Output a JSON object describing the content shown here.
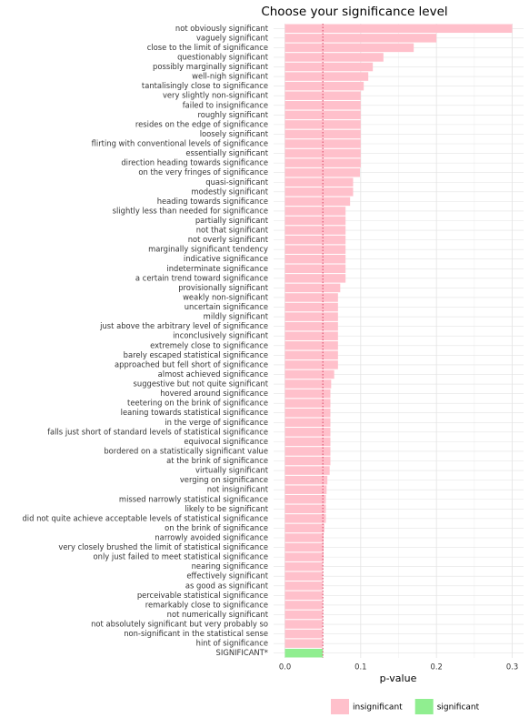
{
  "chart_data": {
    "type": "barh",
    "title": "Choose your significance level",
    "x_label": "p-value",
    "categories": [
      "not obviously significant",
      "vaguely significant",
      "close to the limit of significance",
      "questionably significant",
      "possibly marginally significant",
      "well-nigh significant",
      "tantalisingly close to significance",
      "very slightly non-significant",
      "failed to insignificance",
      "roughly significant",
      "resides on the edge of significance",
      "loosely significant",
      "flirting with conventional levels of significance",
      "essentially significant",
      "direction heading towards significance",
      "on the very fringes of significance",
      "quasi-significant",
      "modestly significant",
      "heading towards significance",
      "slightly less than needed for significance",
      "partially significant",
      "not that significant",
      "not overly significant",
      "marginally significant tendency",
      "indicative significance",
      "indeterminate significance",
      "a certain trend toward significance",
      "provisionally significant",
      "weakly non-significant",
      "uncertain significance",
      "mildly significant",
      "just above the arbitrary level of significance",
      "inconclusively significant",
      "extremely close to significance",
      "barely escaped statistical significance",
      "approached but fell short of significance",
      "almost achieved significance",
      "suggestive but not quite significant",
      "hovered around significance",
      "teetering on the brink of significance",
      "leaning towards statistical significance",
      "in the verge of significance",
      "falls just short of standard levels of statistical significance",
      "equivocal significance",
      "bordered on a statistically significant value",
      "at the brink of significance",
      "virtually significant",
      "verging on significance",
      "not insignificant",
      "missed narrowly statistical significance",
      "likely to be significant",
      "did not quite achieve acceptable levels of statistical significance",
      "on the brink of significance",
      "narrowly avoided significance",
      "very closely brushed the limit of statistical significance",
      "only just failed to meet statistical significance",
      "nearing significance",
      "effectively significant",
      "as good as significant",
      "perceivable statistical significance",
      "remarkably close to significance",
      "not numerically significant",
      "not absolutely significant but very probably so",
      "non-significant in the statistical sense",
      "hint of significance",
      "SIGNIFICANT*"
    ],
    "series": [
      {
        "name": "insignificant",
        "color": "#ffc0cb",
        "values": [
          0.3,
          0.2,
          0.17,
          0.13,
          0.116,
          0.11,
          0.104,
          0.1,
          0.1,
          0.1,
          0.1,
          0.1,
          0.1,
          0.1,
          0.1,
          0.099,
          0.09,
          0.09,
          0.086,
          0.08,
          0.08,
          0.08,
          0.08,
          0.08,
          0.08,
          0.08,
          0.08,
          0.073,
          0.07,
          0.07,
          0.07,
          0.07,
          0.07,
          0.07,
          0.07,
          0.07,
          0.065,
          0.061,
          0.06,
          0.06,
          0.06,
          0.06,
          0.06,
          0.06,
          0.06,
          0.06,
          0.059,
          0.056,
          0.055,
          0.054,
          0.054,
          0.054,
          0.052,
          0.051,
          0.051,
          0.051,
          0.05,
          0.05,
          0.05,
          0.05,
          0.05,
          0.05,
          0.05,
          0.05,
          0.05,
          null
        ]
      },
      {
        "name": "significant",
        "color": "#90ee90",
        "values": [
          null,
          null,
          null,
          null,
          null,
          null,
          null,
          null,
          null,
          null,
          null,
          null,
          null,
          null,
          null,
          null,
          null,
          null,
          null,
          null,
          null,
          null,
          null,
          null,
          null,
          null,
          null,
          null,
          null,
          null,
          null,
          null,
          null,
          null,
          null,
          null,
          null,
          null,
          null,
          null,
          null,
          null,
          null,
          null,
          null,
          null,
          null,
          null,
          null,
          null,
          null,
          null,
          null,
          null,
          null,
          null,
          null,
          null,
          null,
          null,
          null,
          null,
          null,
          null,
          null,
          0.05
        ]
      }
    ],
    "reference_line": {
      "value": 0.05,
      "color": "#d94060"
    },
    "xlim": [
      -0.015,
      0.315
    ],
    "xticks": [
      {
        "value": 0,
        "label": "0.0"
      },
      0.1,
      0.2,
      0.3
    ],
    "grid": true,
    "legend": "bottom"
  }
}
